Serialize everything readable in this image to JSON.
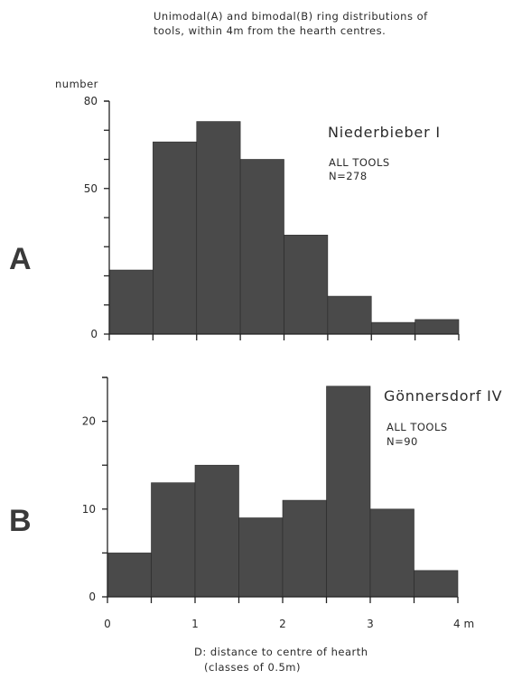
{
  "figure": {
    "title_line1": "Unimodal(A) and bimodal(B) ring distributions of",
    "title_line2": "tools, within 4m from the hearth centres.",
    "xlabel_line1": "D: distance to centre of hearth",
    "xlabel_line2": "(classes of 0.5m)",
    "bar_color": "#4a4a4a"
  },
  "chart_data": [
    {
      "type": "bar",
      "panel": "A",
      "ylabel": "number",
      "site": "Niederbieber I",
      "subtitle_line1": "ALL TOOLS",
      "subtitle_line2": "N=278",
      "bin_edges": [
        0,
        0.5,
        1.0,
        1.5,
        2.0,
        2.5,
        3.0,
        3.5,
        4.0
      ],
      "values": [
        22,
        66,
        73,
        60,
        34,
        13,
        4,
        5
      ],
      "ylim": [
        0,
        80
      ],
      "yticks": [
        0,
        50,
        80
      ],
      "xlim": [
        0,
        4
      ],
      "xticks": [],
      "grid": false
    },
    {
      "type": "bar",
      "panel": "B",
      "ylabel": "",
      "site": "Gönnersdorf IV",
      "subtitle_line1": "ALL TOOLS",
      "subtitle_line2": "N=90",
      "bin_edges": [
        0,
        0.5,
        1.0,
        1.5,
        2.0,
        2.5,
        3.0,
        3.5,
        4.0
      ],
      "values": [
        5,
        13,
        15,
        9,
        11,
        24,
        10,
        3
      ],
      "ylim": [
        0,
        25
      ],
      "yticks": [
        0,
        10,
        20
      ],
      "xlim": [
        0,
        4
      ],
      "xticks": [
        "0",
        "1",
        "2",
        "3",
        "4 m"
      ],
      "grid": false
    }
  ]
}
